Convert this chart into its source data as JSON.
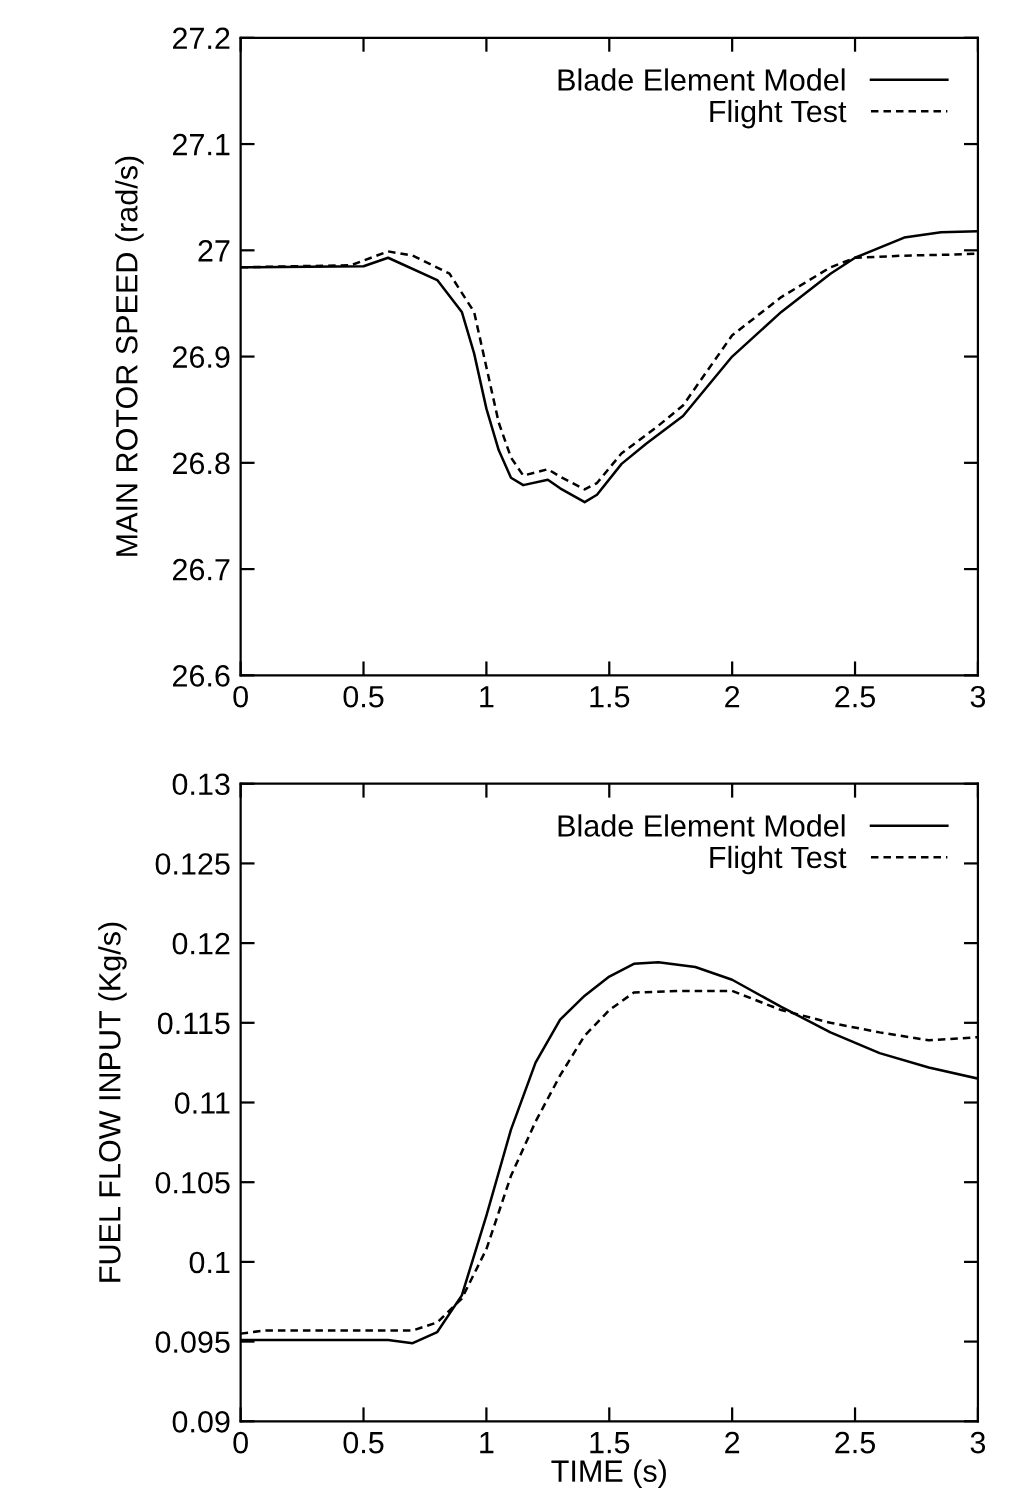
{
  "chart_data": [
    {
      "type": "line",
      "ylabel": "MAIN ROTOR SPEED (rad/s)",
      "xlim": [
        0,
        3
      ],
      "ylim": [
        26.6,
        27.2
      ],
      "xticks": [
        0,
        0.5,
        1,
        1.5,
        2,
        2.5,
        3
      ],
      "yticks": [
        26.6,
        26.7,
        26.8,
        26.9,
        27,
        27.1,
        27.2
      ],
      "legend": "top right",
      "grid": false,
      "series": [
        {
          "name": "Blade Element Model",
          "color": "#000000",
          "line_style": "solid",
          "x": [
            0,
            0.5,
            0.6,
            0.8,
            0.9,
            0.95,
            1.0,
            1.05,
            1.1,
            1.15,
            1.25,
            1.3,
            1.4,
            1.45,
            1.55,
            1.65,
            1.8,
            2.0,
            2.2,
            2.4,
            2.5,
            2.7,
            2.85,
            3.0
          ],
          "values": [
            26.984,
            26.985,
            26.993,
            26.972,
            26.942,
            26.903,
            26.851,
            26.812,
            26.786,
            26.779,
            26.784,
            26.776,
            26.763,
            26.77,
            26.799,
            26.818,
            26.844,
            26.9,
            26.942,
            26.978,
            26.993,
            27.012,
            27.017,
            27.018
          ]
        },
        {
          "name": "Flight Test",
          "color": "#000000",
          "line_style": "dashed",
          "x": [
            0,
            0.45,
            0.6,
            0.7,
            0.85,
            0.95,
            1.0,
            1.05,
            1.1,
            1.15,
            1.25,
            1.3,
            1.4,
            1.45,
            1.55,
            1.7,
            1.8,
            2.0,
            2.2,
            2.4,
            2.5,
            2.7,
            2.9,
            3.0
          ],
          "values": [
            26.984,
            26.986,
            26.999,
            26.995,
            26.978,
            26.942,
            26.89,
            26.838,
            26.805,
            26.788,
            26.794,
            26.787,
            26.775,
            26.781,
            26.809,
            26.835,
            26.854,
            26.92,
            26.956,
            26.984,
            26.993,
            26.995,
            26.996,
            26.997
          ]
        }
      ]
    },
    {
      "type": "line",
      "xlabel": "TIME (s)",
      "ylabel": "FUEL FLOW INPUT (Kg/s)",
      "xlim": [
        0,
        3
      ],
      "ylim": [
        0.09,
        0.13
      ],
      "xticks": [
        0,
        0.5,
        1,
        1.5,
        2,
        2.5,
        3
      ],
      "yticks": [
        0.09,
        0.095,
        0.1,
        0.105,
        0.11,
        0.115,
        0.12,
        0.125,
        0.13
      ],
      "legend": "top right",
      "grid": false,
      "series": [
        {
          "name": "Blade Element Model",
          "color": "#000000",
          "line_style": "solid",
          "x": [
            0,
            0.6,
            0.7,
            0.8,
            0.9,
            1.0,
            1.1,
            1.2,
            1.3,
            1.4,
            1.5,
            1.6,
            1.7,
            1.85,
            2.0,
            2.2,
            2.4,
            2.6,
            2.8,
            3.0
          ],
          "values": [
            0.0951,
            0.0951,
            0.0949,
            0.0956,
            0.0979,
            0.1029,
            0.1083,
            0.1125,
            0.1152,
            0.1167,
            0.1179,
            0.1187,
            0.1188,
            0.1185,
            0.1177,
            0.116,
            0.1144,
            0.1131,
            0.1122,
            0.1115
          ]
        },
        {
          "name": "Flight Test",
          "color": "#000000",
          "line_style": "dashed",
          "x": [
            0,
            0.1,
            0.7,
            0.8,
            0.9,
            1.0,
            1.1,
            1.2,
            1.3,
            1.4,
            1.5,
            1.6,
            1.8,
            2.0,
            2.2,
            2.4,
            2.6,
            2.8,
            3.0
          ],
          "values": [
            0.0955,
            0.0957,
            0.0957,
            0.0962,
            0.0977,
            0.1008,
            0.1054,
            0.1088,
            0.1117,
            0.1142,
            0.1158,
            0.1169,
            0.117,
            0.117,
            0.1158,
            0.115,
            0.1144,
            0.1139,
            0.1141
          ]
        }
      ]
    }
  ]
}
